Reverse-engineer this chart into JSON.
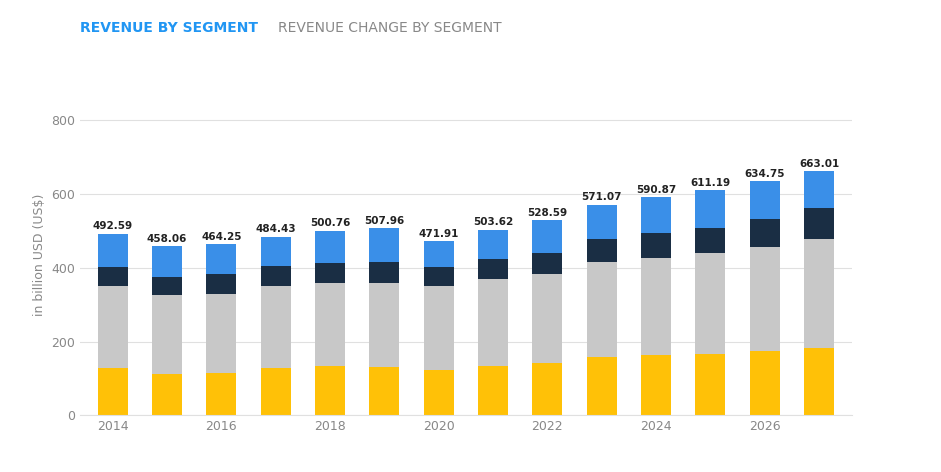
{
  "years": [
    2014,
    2015,
    2016,
    2017,
    2018,
    2019,
    2020,
    2021,
    2022,
    2023,
    2024,
    2025,
    2026,
    2027
  ],
  "totals": [
    492.59,
    458.06,
    464.25,
    484.43,
    500.76,
    507.96,
    471.91,
    503.62,
    528.59,
    571.07,
    590.87,
    611.19,
    634.75,
    663.01
  ],
  "skin_care": [
    128,
    112,
    114,
    128,
    135,
    132,
    122,
    133,
    143,
    158,
    163,
    167,
    174,
    183
  ],
  "personal_care": [
    222,
    215,
    216,
    222,
    223,
    228,
    228,
    237,
    240,
    257,
    264,
    272,
    283,
    296
  ],
  "fragrances": [
    52,
    48,
    52,
    55,
    55,
    57,
    52,
    54,
    57,
    63,
    67,
    70,
    75,
    82
  ],
  "cosmetics": [
    90.59,
    83.06,
    82.25,
    79.43,
    87.76,
    90.96,
    69.91,
    79.62,
    88.59,
    93.07,
    96.87,
    102.19,
    102.75,
    102.01
  ],
  "skin_care_color": "#FFC107",
  "personal_care_color": "#C8C8C8",
  "fragrances_color": "#1A2E44",
  "cosmetics_color": "#3A8FE8",
  "total_dot_color": "#C0C0C0",
  "title": "REVENUE BY SEGMENT",
  "title2": "REVENUE CHANGE BY SEGMENT",
  "ylabel": "in billion USD (US$)",
  "ylim": [
    0,
    870
  ],
  "yticks": [
    0,
    200,
    400,
    600,
    800
  ],
  "bar_width": 0.55,
  "background_color": "#ffffff",
  "grid_color": "#e0e0e0",
  "tick_color": "#888888",
  "title_color": "#2196F3",
  "title2_color": "#888888",
  "label_fontsize": 7.5,
  "axis_fontsize": 9
}
